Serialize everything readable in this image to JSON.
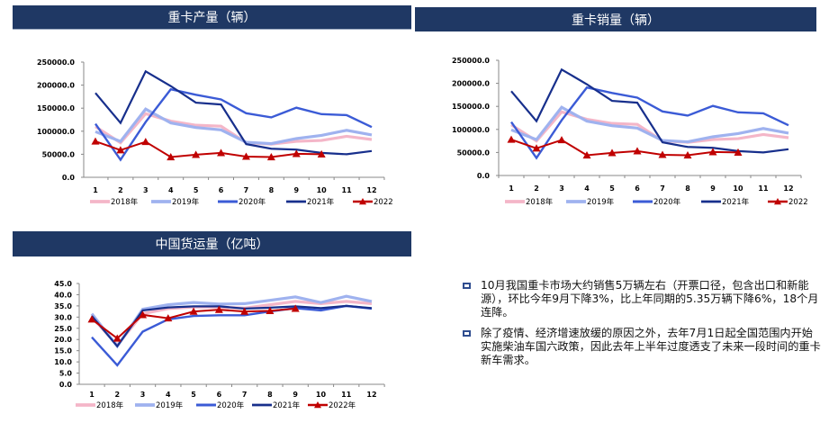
{
  "colors": {
    "header_bg": "#1f3864",
    "s2018": "#f4b6c8",
    "s2019": "#9fb2ef",
    "s2020": "#3b5bd6",
    "s2021": "#172f8c",
    "s2022": "#c00000",
    "bullet": "#2f4d8f"
  },
  "chart_data": [
    {
      "type": "line",
      "title": "重卡产量（辆）",
      "categories": [
        "1",
        "2",
        "3",
        "4",
        "5",
        "6",
        "7",
        "8",
        "9",
        "10",
        "11",
        "12"
      ],
      "ylim": [
        0,
        250000
      ],
      "yticks": [
        "0.0",
        "50000.0",
        "100000.0",
        "150000.0",
        "200000.0",
        "250000.0"
      ],
      "ytick_values": [
        0,
        50000,
        100000,
        150000,
        200000,
        250000
      ],
      "legend_position": "bottom",
      "series": [
        {
          "name": "2018年",
          "key": "s2018",
          "values": [
            110000,
            75000,
            138000,
            122000,
            113000,
            111000,
            75000,
            72000,
            78000,
            80000,
            89000,
            82000
          ]
        },
        {
          "name": "2019年",
          "key": "s2019",
          "values": [
            99000,
            78000,
            148000,
            118000,
            108000,
            103000,
            76000,
            73000,
            84000,
            91000,
            102000,
            92000
          ]
        },
        {
          "name": "2020年",
          "key": "s2020",
          "values": [
            116000,
            38000,
            120000,
            191000,
            179000,
            169000,
            139000,
            130000,
            151000,
            137000,
            135000,
            109000
          ]
        },
        {
          "name": "2021年",
          "key": "s2021",
          "values": [
            183000,
            118000,
            230000,
            198000,
            162000,
            158000,
            72000,
            62000,
            60000,
            53000,
            50000,
            57000
          ]
        },
        {
          "name": "2022",
          "key": "s2022",
          "marker": "triangle",
          "values": [
            78000,
            59000,
            77000,
            44000,
            49000,
            53000,
            45000,
            44000,
            51000,
            50000,
            null,
            null
          ]
        }
      ]
    },
    {
      "type": "line",
      "title": "重卡销量（辆）",
      "categories": [
        "1",
        "2",
        "3",
        "4",
        "5",
        "6",
        "7",
        "8",
        "9",
        "10",
        "11",
        "12"
      ],
      "ylim": [
        0,
        250000
      ],
      "yticks": [
        "0.0",
        "50000.0",
        "100000.0",
        "150000.0",
        "200000.0",
        "250000.0"
      ],
      "ytick_values": [
        0,
        50000,
        100000,
        150000,
        200000,
        250000
      ],
      "legend_position": "bottom",
      "series": [
        {
          "name": "2018年",
          "key": "s2018",
          "values": [
            110000,
            75000,
            138000,
            122000,
            113000,
            111000,
            75000,
            72000,
            78000,
            80000,
            89000,
            82000
          ]
        },
        {
          "name": "2019年",
          "key": "s2019",
          "values": [
            99000,
            78000,
            148000,
            118000,
            108000,
            103000,
            76000,
            73000,
            84000,
            91000,
            102000,
            92000
          ]
        },
        {
          "name": "2020年",
          "key": "s2020",
          "values": [
            116000,
            38000,
            120000,
            191000,
            179000,
            169000,
            139000,
            130000,
            151000,
            137000,
            135000,
            109000
          ]
        },
        {
          "name": "2021年",
          "key": "s2021",
          "values": [
            183000,
            118000,
            230000,
            198000,
            162000,
            158000,
            72000,
            62000,
            60000,
            53000,
            50000,
            57000
          ]
        },
        {
          "name": "2022",
          "key": "s2022",
          "marker": "triangle",
          "values": [
            78000,
            59000,
            77000,
            44000,
            49000,
            53000,
            45000,
            44000,
            51000,
            50000,
            null,
            null
          ]
        }
      ]
    },
    {
      "type": "line",
      "title": "中国货运量（亿吨）",
      "categories": [
        "1",
        "2",
        "3",
        "4",
        "5",
        "6",
        "7",
        "8",
        "9",
        "10",
        "11",
        "12"
      ],
      "ylim": [
        0,
        45
      ],
      "yticks": [
        "0.0",
        "5.0",
        "10.0",
        "15.0",
        "20.0",
        "25.0",
        "30.0",
        "35.0",
        "40.0",
        "45.0"
      ],
      "ytick_values": [
        0,
        5,
        10,
        15,
        20,
        25,
        30,
        35,
        40,
        45
      ],
      "legend_position": "bottom",
      "series": [
        {
          "name": "2018年",
          "key": "s2018",
          "values": [
            30.0,
            17.5,
            31.5,
            33.8,
            34.5,
            34.5,
            34.0,
            35.5,
            37.0,
            36.0,
            37.0,
            36.0
          ]
        },
        {
          "name": "2019年",
          "key": "s2019",
          "values": [
            31.5,
            17.0,
            33.5,
            35.5,
            36.5,
            35.8,
            36.0,
            37.5,
            39.0,
            36.5,
            39.3,
            37.0
          ]
        },
        {
          "name": "2020年",
          "key": "s2020",
          "values": [
            21.0,
            8.5,
            23.5,
            29.0,
            30.5,
            30.8,
            30.8,
            32.5,
            34.0,
            33.0,
            35.0,
            33.8
          ]
        },
        {
          "name": "2021年",
          "key": "s2021",
          "values": [
            30.5,
            17.0,
            33.0,
            34.3,
            34.8,
            34.8,
            33.8,
            34.2,
            34.8,
            34.0,
            35.0,
            34.0
          ]
        },
        {
          "name": "2022年",
          "key": "s2022",
          "marker": "triangle",
          "values": [
            29.0,
            20.5,
            31.0,
            29.5,
            32.5,
            33.3,
            32.5,
            32.8,
            33.8,
            null,
            null,
            null
          ]
        }
      ]
    }
  ],
  "notes": [
    "10月我国重卡市场大约销售5万辆左右（开票口径，包含出口和新能源），环比今年9月下降3%，比上年同期的5.35万辆下降6%，18个月连降。",
    "除了疫情、经济增速放缓的原因之外，去年7月1日起全国范围内开始实施柴油车国六政策，因此去年上半年过度透支了未来一段时间的重卡新车需求。"
  ]
}
